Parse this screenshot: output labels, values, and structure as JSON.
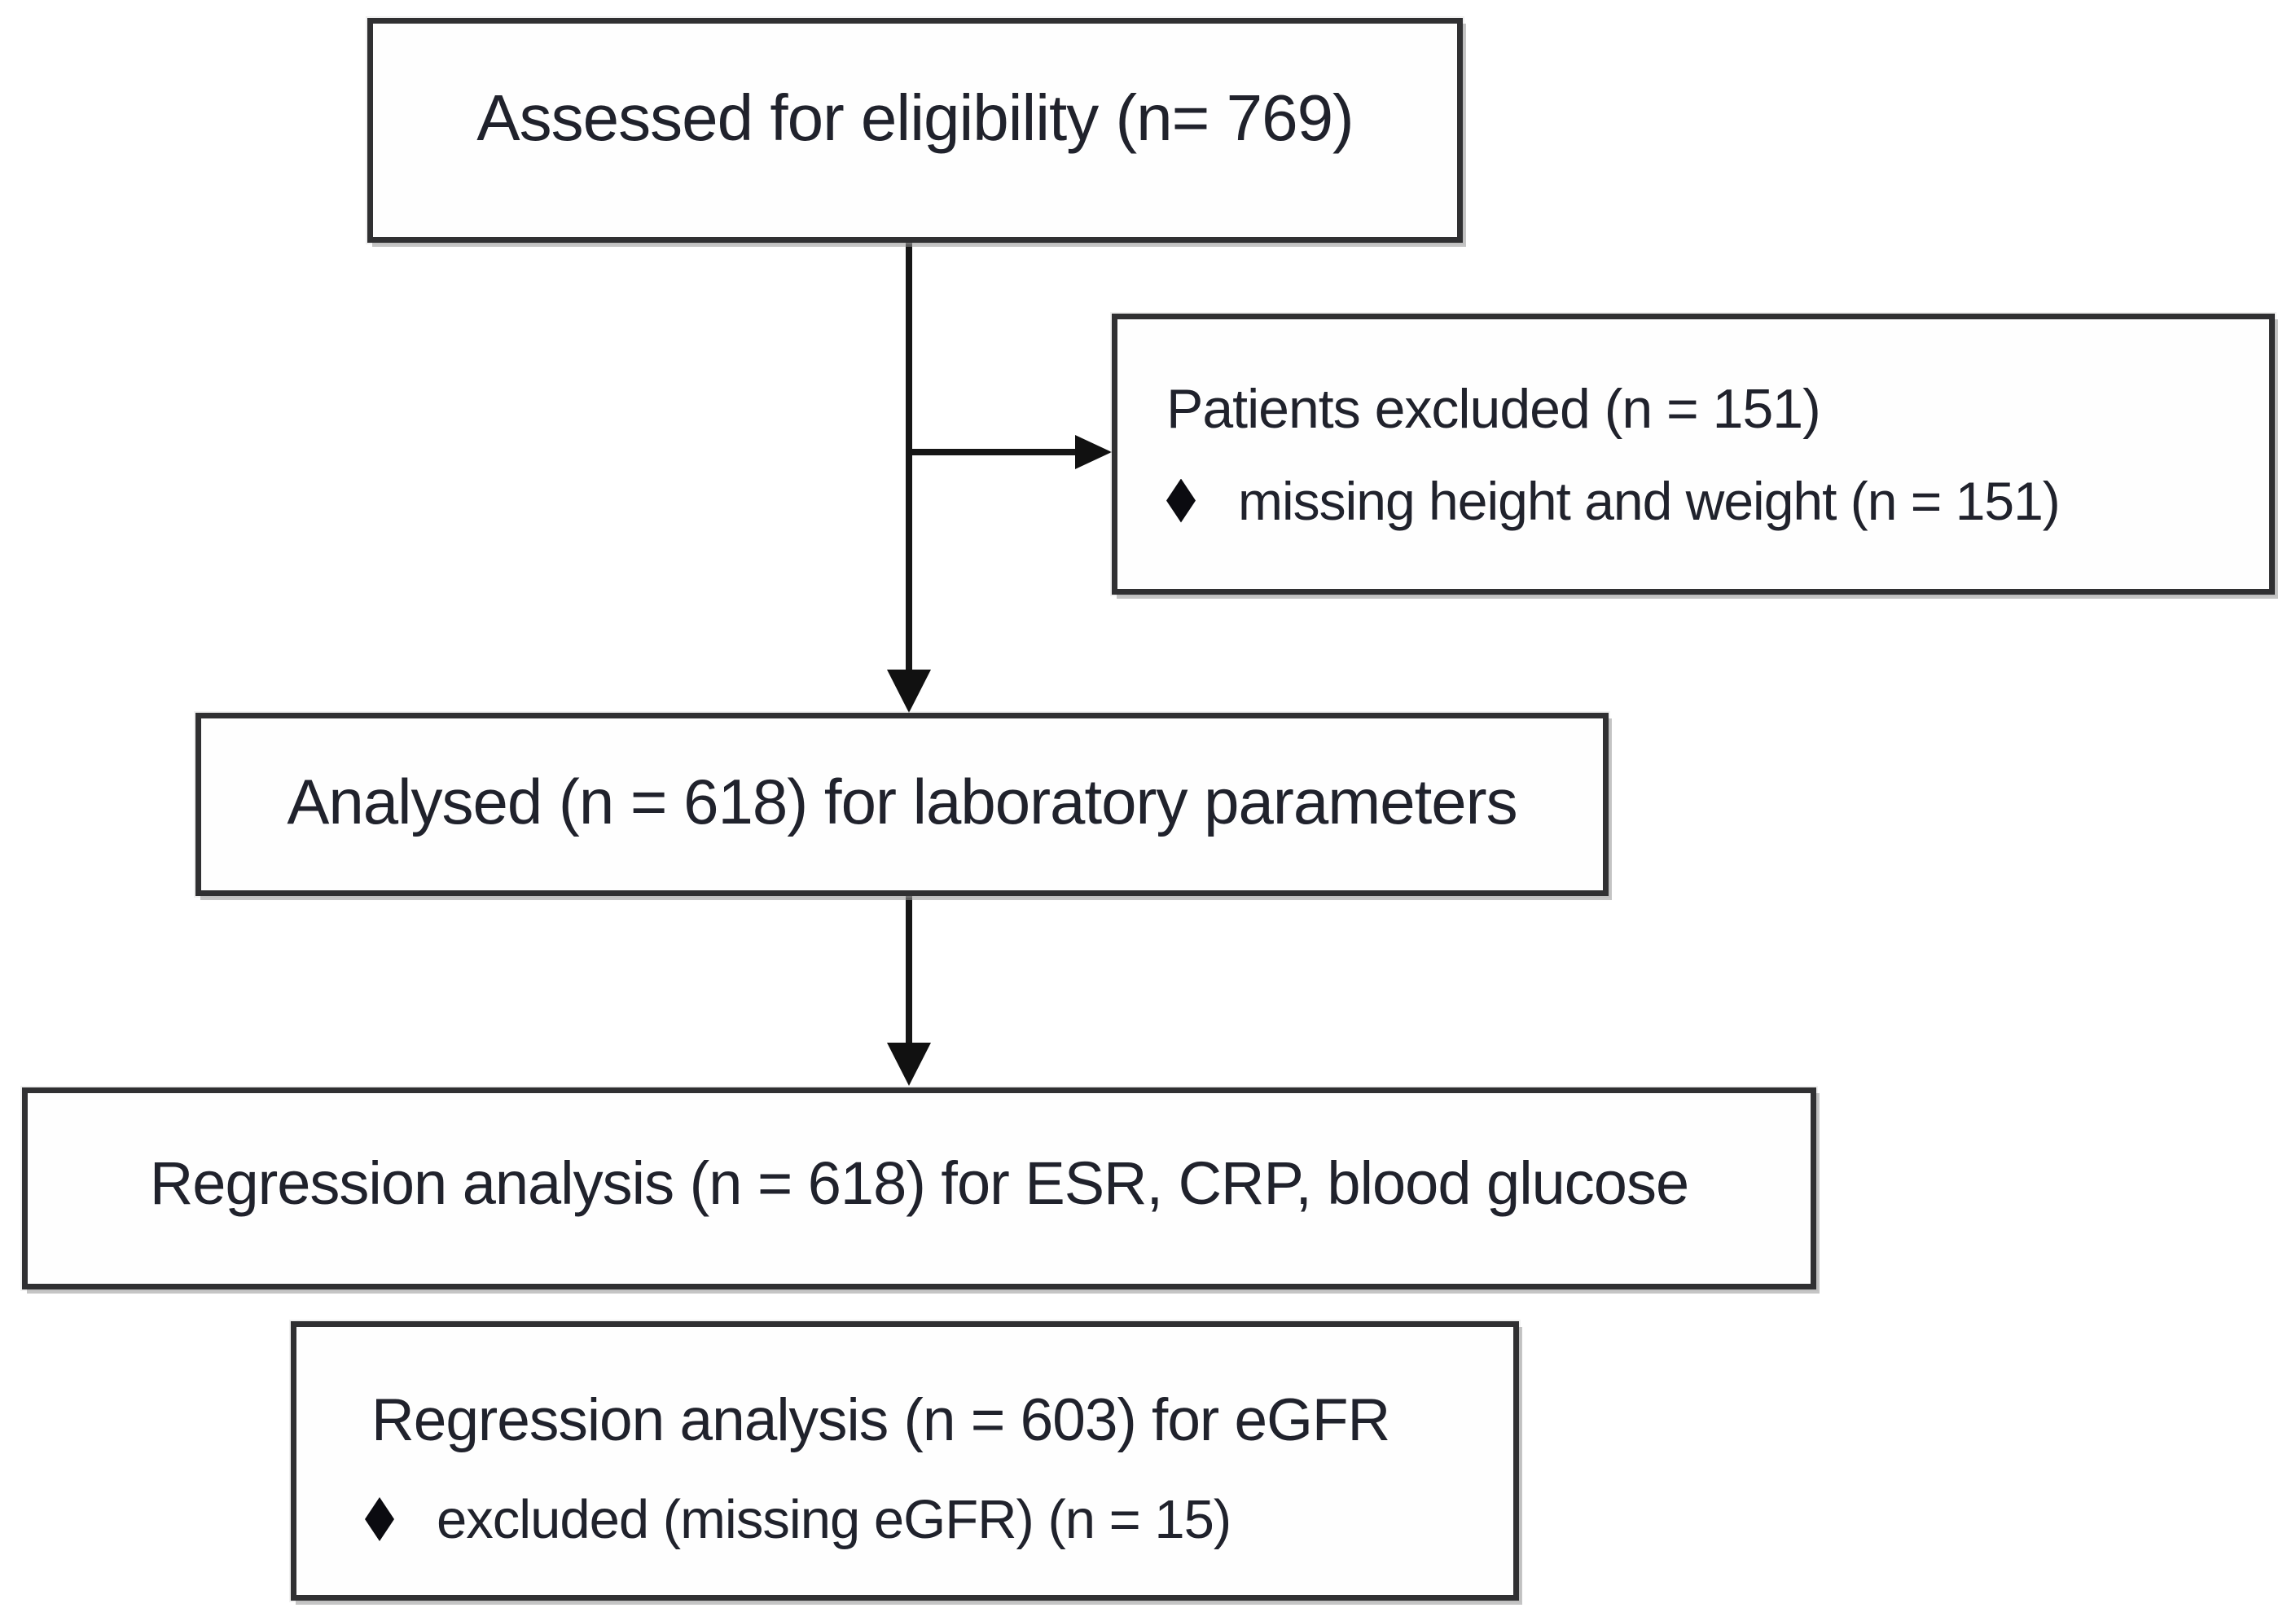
{
  "styles": {
    "background": "#ffffff",
    "box_border_color": "#303032",
    "arrow_color": "#161616",
    "text_color": "#20222c",
    "bullet_color": "#0b0b10"
  },
  "icons": {
    "bullet": "diamond-bullet-icon",
    "down_arrow": "arrowhead-down-icon",
    "right_arrow": "arrowhead-right-icon"
  },
  "nodes": {
    "assessed": {
      "text": "Assessed for eligibility (n= 769)"
    },
    "excluded": {
      "line1": "Patients excluded (n = 151)",
      "bullet_text": "missing height and weight (n = 151)"
    },
    "analysed": {
      "text": "Analysed (n = 618) for laboratory parameters"
    },
    "regression_lab": {
      "text": "Regression analysis (n = 618) for ESR, CRP, blood glucose"
    },
    "regression_egfr": {
      "line1": "Regression analysis (n = 603) for eGFR",
      "bullet_text": "excluded (missing eGFR) (n = 15)"
    }
  },
  "edges": [
    {
      "from": "assessed",
      "to": "analysed",
      "direction": "down"
    },
    {
      "from": "assessed",
      "to": "excluded",
      "direction": "right"
    },
    {
      "from": "analysed",
      "to": "regression_lab",
      "direction": "down"
    }
  ]
}
